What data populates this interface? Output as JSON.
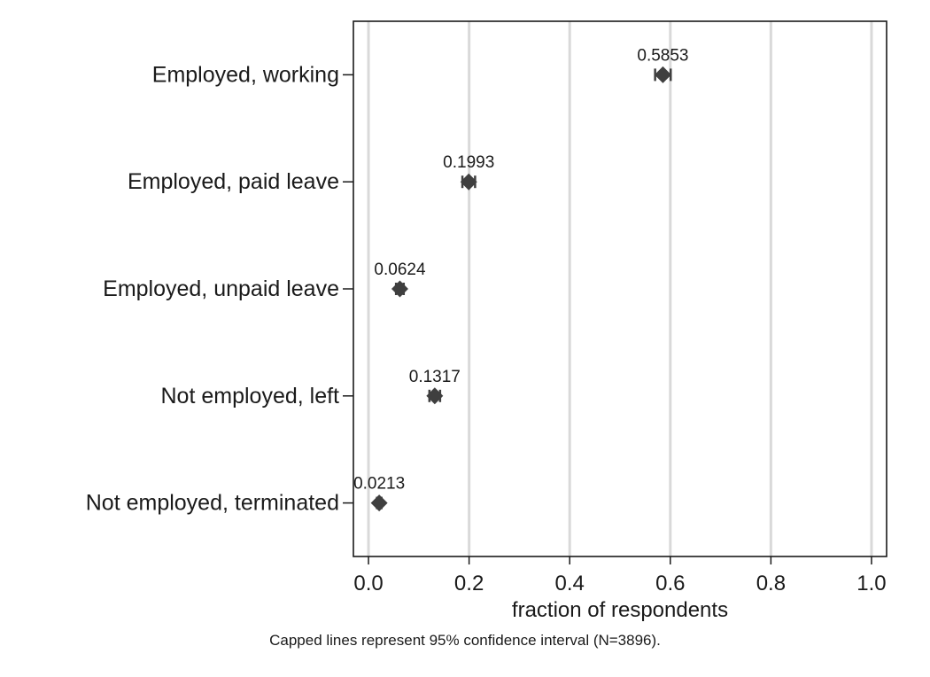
{
  "chart_data": {
    "type": "scatter",
    "orientation": "horizontal",
    "categories": [
      "Employed, working",
      "Employed, paid leave",
      "Employed, unpaid leave",
      "Not employed, left",
      "Not employed, terminated"
    ],
    "values": [
      0.5853,
      0.1993,
      0.0624,
      0.1317,
      0.0213
    ],
    "data_labels": [
      "0.5853",
      "0.1993",
      "0.0624",
      "0.1317",
      "0.0213"
    ],
    "ci_low": [
      0.5698,
      0.1867,
      0.0548,
      0.1211,
      0.0168
    ],
    "ci_high": [
      0.6008,
      0.2119,
      0.07,
      0.1423,
      0.0258
    ],
    "xlabel": "fraction of respondents",
    "ylabel": "",
    "xlim": [
      -0.03,
      1.03
    ],
    "xticks": [
      0,
      0.2,
      0.4,
      0.6,
      0.8,
      1.0
    ],
    "xtick_labels": [
      "0.0",
      "0.2",
      "0.4",
      "0.6",
      "0.8",
      "1.0"
    ],
    "note": "Capped lines represent 95% confidence interval (N=3896).",
    "grid": "vertical",
    "marker": "diamond",
    "colors": {
      "marker": "#3f3f3f",
      "grid": "#d9d9d9",
      "axis": "#1a1a1a"
    }
  }
}
